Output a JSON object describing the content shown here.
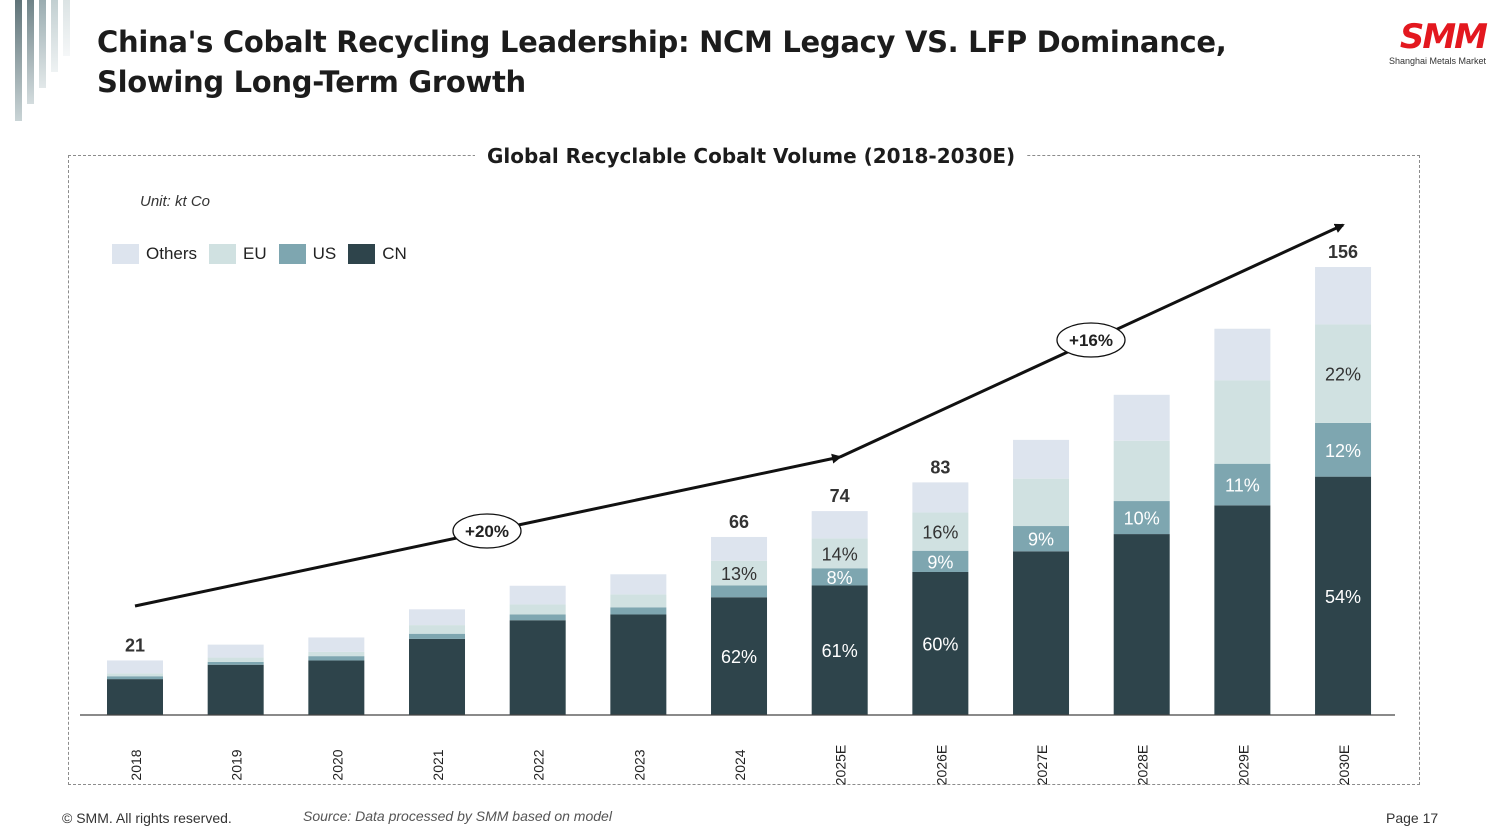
{
  "header": {
    "title": "China's Cobalt Recycling Leadership: NCM Legacy VS. LFP Dominance, Slowing Long-Term Growth",
    "logo_text": "SMM",
    "logo_subtext": "Shanghai Metals Market"
  },
  "colors": {
    "CN": "#2e444b",
    "US": "#7ea6b0",
    "EU": "#d0e1e1",
    "Others": "#dde4ee",
    "logo": "#e3181f"
  },
  "chart_data": {
    "type": "bar",
    "stacked": true,
    "title": "Global Recyclable Cobalt Volume (2018-2030E)",
    "unit": "Unit: kt Co",
    "legend_position": "top-left",
    "grid": false,
    "categories": [
      "2018",
      "2019",
      "2020",
      "2021",
      "2022",
      "2023",
      "2024",
      "2025E",
      "2026E",
      "2027E",
      "2028E",
      "2029E",
      "2030E"
    ],
    "series": [
      {
        "name": "Others",
        "values": [
          4.5,
          4.5,
          5.0,
          5.5,
          6.5,
          7.0,
          8.3,
          9.5,
          10.5,
          13.5,
          16.0,
          18.0,
          20.0
        ]
      },
      {
        "name": "EU",
        "values": [
          1.0,
          1.5,
          1.5,
          3.0,
          3.5,
          4.5,
          8.6,
          10.4,
          13.3,
          16.5,
          21.0,
          29.0,
          34.3
        ]
      },
      {
        "name": "US",
        "values": [
          1.0,
          1.0,
          1.5,
          1.8,
          2.0,
          2.5,
          4.1,
          6.0,
          7.4,
          8.8,
          11.5,
          14.5,
          18.7
        ]
      },
      {
        "name": "CN",
        "values": [
          12.5,
          17.5,
          19.0,
          26.5,
          33.0,
          35.0,
          41.0,
          45.1,
          49.8,
          57.0,
          63.0,
          73.0,
          83.0
        ]
      }
    ],
    "totals": [
      {
        "category": "2018",
        "label": "21"
      },
      {
        "category": "2024",
        "label": "66"
      },
      {
        "category": "2025E",
        "label": "74"
      },
      {
        "category": "2026E",
        "label": "83"
      },
      {
        "category": "2030E",
        "label": "156"
      }
    ],
    "segment_labels": [
      {
        "category": "2024",
        "series": "CN",
        "label": "62%"
      },
      {
        "category": "2024",
        "series": "EU",
        "label": "13%"
      },
      {
        "category": "2025E",
        "series": "CN",
        "label": "61%"
      },
      {
        "category": "2025E",
        "series": "US",
        "label": "8%"
      },
      {
        "category": "2025E",
        "series": "EU",
        "label": "14%"
      },
      {
        "category": "2026E",
        "series": "CN",
        "label": "60%"
      },
      {
        "category": "2026E",
        "series": "US",
        "label": "9%"
      },
      {
        "category": "2026E",
        "series": "EU",
        "label": "16%"
      },
      {
        "category": "2027E",
        "series": "US",
        "label": "9%"
      },
      {
        "category": "2028E",
        "series": "US",
        "label": "10%"
      },
      {
        "category": "2029E",
        "series": "US",
        "label": "11%"
      },
      {
        "category": "2030E",
        "series": "CN",
        "label": "54%"
      },
      {
        "category": "2030E",
        "series": "US",
        "label": "12%"
      },
      {
        "category": "2030E",
        "series": "EU",
        "label": "22%"
      }
    ],
    "trend_annotations": [
      {
        "from": "2018",
        "to": "2025E",
        "label": "+20%"
      },
      {
        "from": "2025E",
        "to": "2030E",
        "label": "+16%"
      }
    ],
    "ylim": [
      0,
      160
    ]
  },
  "footer": {
    "copyright": "© SMM. All rights reserved.",
    "source": "Source: Data processed by SMM based on model",
    "page": "Page 17"
  }
}
